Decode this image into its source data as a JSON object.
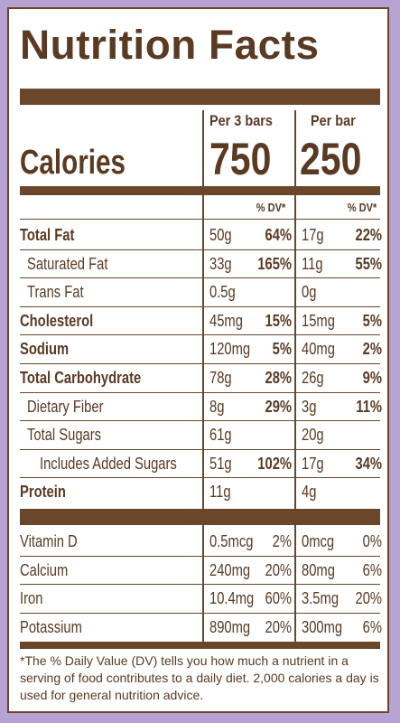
{
  "title": "Nutrition Facts",
  "columns": {
    "per_3_bars": "Per 3 bars",
    "per_bar": "Per bar"
  },
  "calories": {
    "label": "Calories",
    "per_3_bars": "750",
    "per_bar": "250"
  },
  "dv_header": "% DV*",
  "nutrients": [
    {
      "label": "Total Fat",
      "bold": true,
      "indent": 0,
      "amt3": "50g",
      "dv3": "64%",
      "amt1": "17g",
      "dv1": "22%"
    },
    {
      "label": "Saturated Fat",
      "bold": false,
      "indent": 1,
      "amt3": "33g",
      "dv3": "165%",
      "amt1": "11g",
      "dv1": "55%"
    },
    {
      "label": "Trans Fat",
      "bold": false,
      "indent": 1,
      "amt3": "0.5g",
      "dv3": "",
      "amt1": "0g",
      "dv1": ""
    },
    {
      "label": "Cholesterol",
      "bold": true,
      "indent": 0,
      "amt3": "45mg",
      "dv3": "15%",
      "amt1": "15mg",
      "dv1": "5%"
    },
    {
      "label": "Sodium",
      "bold": true,
      "indent": 0,
      "amt3": "120mg",
      "dv3": "5%",
      "amt1": "40mg",
      "dv1": "2%"
    },
    {
      "label": "Total Carbohydrate",
      "bold": true,
      "indent": 0,
      "amt3": "78g",
      "dv3": "28%",
      "amt1": "26g",
      "dv1": "9%"
    },
    {
      "label": "Dietary Fiber",
      "bold": false,
      "indent": 1,
      "amt3": "8g",
      "dv3": "29%",
      "amt1": "3g",
      "dv1": "11%"
    },
    {
      "label": "Total Sugars",
      "bold": false,
      "indent": 1,
      "amt3": "61g",
      "dv3": "",
      "amt1": "20g",
      "dv1": ""
    },
    {
      "label": "Includes Added Sugars",
      "bold": false,
      "indent": 2,
      "amt3": "51g",
      "dv3": "102%",
      "amt1": "17g",
      "dv1": "34%"
    },
    {
      "label": "Protein",
      "bold": true,
      "indent": 0,
      "amt3": "11g",
      "dv3": "",
      "amt1": "4g",
      "dv1": ""
    }
  ],
  "vitamins": [
    {
      "label": "Vitamin D",
      "amt3": "0.5mcg",
      "dv3": "2%",
      "amt1": "0mcg",
      "dv1": "0%"
    },
    {
      "label": "Calcium",
      "amt3": "240mg",
      "dv3": "20%",
      "amt1": "80mg",
      "dv1": "6%"
    },
    {
      "label": "Iron",
      "amt3": "10.4mg",
      "dv3": "60%",
      "amt1": "3.5mg",
      "dv1": "20%"
    },
    {
      "label": "Potassium",
      "amt3": "890mg",
      "dv3": "20%",
      "amt1": "300mg",
      "dv1": "6%"
    }
  ],
  "footnote": "*The % Daily Value (DV) tells you how much a nutrient in a serving of food contributes to a daily diet. 2,000 calories a day is used for general nutrition advice.",
  "colors": {
    "ink": "#6a472b",
    "background": "#b7a3d3"
  }
}
